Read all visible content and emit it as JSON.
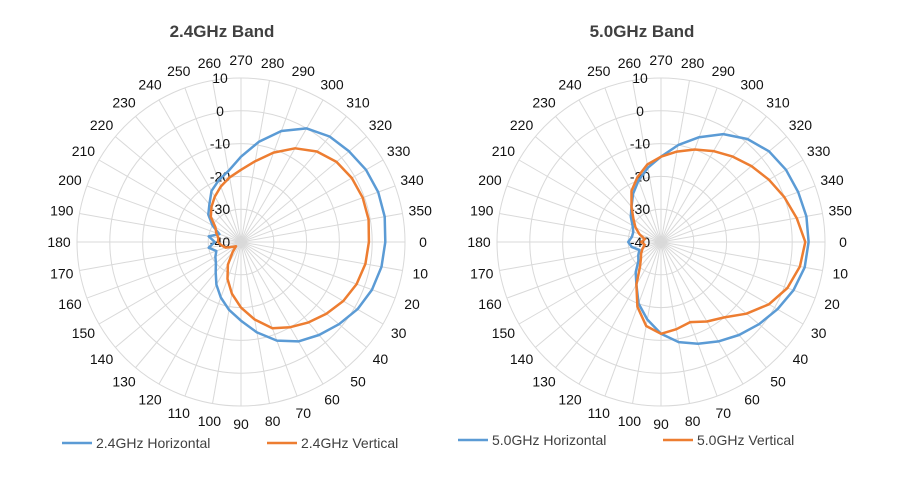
{
  "chart_data": [
    {
      "type": "polar-line",
      "title": "2.4GHz Band",
      "angle_labels": [
        "0",
        "10",
        "20",
        "30",
        "40",
        "50",
        "60",
        "70",
        "80",
        "90",
        "100",
        "110",
        "120",
        "130",
        "140",
        "150",
        "160",
        "170",
        "180",
        "190",
        "200",
        "210",
        "220",
        "230",
        "240",
        "250",
        "260",
        "270",
        "280",
        "290",
        "300",
        "310",
        "320",
        "330",
        "340",
        "350"
      ],
      "radial_ticks": [
        "-40",
        "-30",
        "-20",
        "-10",
        "0",
        "10"
      ],
      "rlim": [
        -40,
        10
      ],
      "grid": true,
      "legend_position": "bottom",
      "series": [
        {
          "name": "2.4GHz Horizontal",
          "color": "#5B9BD5",
          "values": [
            4,
            3.5,
            2.5,
            1,
            -1,
            -3,
            -5,
            -8,
            -12,
            -16,
            -19,
            -22,
            -25,
            -28,
            -30,
            -31,
            -32,
            -30,
            -32,
            -30,
            -33,
            -30,
            -27,
            -25,
            -22,
            -20,
            -18,
            -14,
            -9,
            -4,
            0,
            2,
            3,
            4,
            4.5,
            4.5
          ]
        },
        {
          "name": "2.4GHz Vertical",
          "color": "#ED7D31",
          "values": [
            -1,
            -1.5,
            -2.5,
            -4,
            -6,
            -8,
            -10,
            -12,
            -16,
            -20,
            -24,
            -28,
            -32,
            -36,
            -38,
            -37,
            -35,
            -34,
            -33,
            -33,
            -32,
            -31,
            -28,
            -26,
            -24,
            -22,
            -20,
            -18,
            -15,
            -11,
            -7,
            -4,
            -2,
            -1,
            -0.5,
            -0.5
          ]
        }
      ]
    },
    {
      "type": "polar-line",
      "title": "5.0GHz Band",
      "angle_labels": [
        "0",
        "10",
        "20",
        "30",
        "40",
        "50",
        "60",
        "70",
        "80",
        "90",
        "100",
        "110",
        "120",
        "130",
        "140",
        "150",
        "160",
        "170",
        "180",
        "190",
        "200",
        "210",
        "220",
        "230",
        "240",
        "250",
        "260",
        "270",
        "280",
        "290",
        "300",
        "310",
        "320",
        "330",
        "340",
        "350"
      ],
      "radial_ticks": [
        "-40",
        "-30",
        "-20",
        "-10",
        "0",
        "10"
      ],
      "rlim": [
        -40,
        10
      ],
      "grid": true,
      "legend_position": "bottom",
      "series": [
        {
          "name": "5.0GHz Horizontal",
          "color": "#5B9BD5",
          "values": [
            5,
            4.5,
            3,
            1,
            -1,
            -3,
            -5,
            -7,
            -9,
            -12,
            -16,
            -20,
            -25,
            -28,
            -31,
            -32,
            -33,
            -31,
            -30,
            -31,
            -31,
            -30,
            -28,
            -26,
            -23,
            -20,
            -17,
            -14,
            -10,
            -6,
            -2,
            1,
            3,
            4,
            4.5,
            5
          ]
        },
        {
          "name": "5.0GHz Vertical",
          "color": "#ED7D31",
          "values": [
            4,
            3,
            1,
            -2,
            -6,
            -10,
            -12,
            -14,
            -13,
            -12,
            -14,
            -19,
            -25,
            -30,
            -32,
            -33,
            -34,
            -35,
            -34,
            -35,
            -33,
            -31,
            -29,
            -26,
            -22,
            -19,
            -16,
            -14,
            -12,
            -10,
            -8,
            -6,
            -4,
            -2,
            0,
            2
          ]
        }
      ]
    }
  ]
}
